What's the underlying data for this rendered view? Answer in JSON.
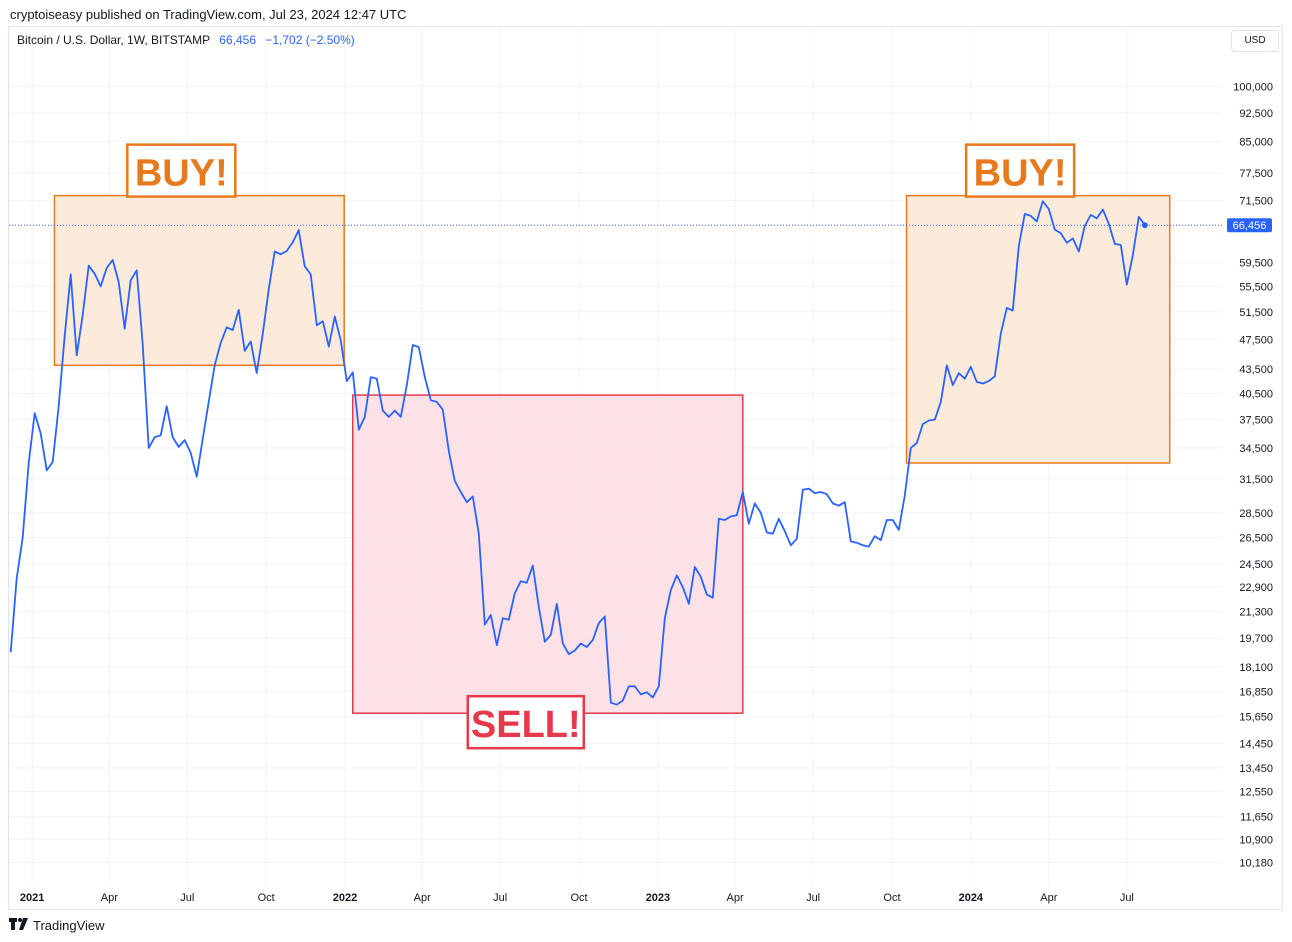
{
  "header": {
    "published": "cryptoiseasy published on TradingView.com, Jul 23, 2024 12:47 UTC"
  },
  "legend": {
    "symbol": "Bitcoin / U.S. Dollar, 1W, BITSTAMP",
    "price": "66,456",
    "change": "−1,702 (−2.50%)"
  },
  "currency_button": "USD",
  "footer": {
    "brand": "TradingView"
  },
  "colors": {
    "line": "#2962ff",
    "buy_fill": "#fce7d3",
    "buy_stroke": "#e87a1e",
    "buy_text": "#e87a1e",
    "sell_fill": "#fbdde3",
    "sell_stroke": "#e53a4b",
    "sell_text": "#e53a4b",
    "grid": "#f0f3fa",
    "price_tag": "#2962ff"
  },
  "chart_data": {
    "type": "line",
    "title": "Bitcoin / U.S. Dollar, 1W, BITSTAMP",
    "y_scale": "log",
    "ylim": [
      9500,
      110000
    ],
    "xlim": [
      "2020-12-05",
      "2024-10-20"
    ],
    "y_ticks": [
      100000,
      92500,
      85000,
      77500,
      71500,
      59500,
      55500,
      51500,
      47500,
      43500,
      40500,
      37500,
      34500,
      31500,
      28500,
      26500,
      24500,
      22900,
      21300,
      19700,
      18100,
      16850,
      15650,
      14450,
      13450,
      12550,
      11650,
      10900,
      10180
    ],
    "y_tick_labels": [
      "100,000",
      "92,500",
      "85,000",
      "77,500",
      "71,500",
      "59,500",
      "55,500",
      "51,500",
      "47,500",
      "43,500",
      "40,500",
      "37,500",
      "34,500",
      "31,500",
      "28,500",
      "26,500",
      "24,500",
      "22,900",
      "21,300",
      "19,700",
      "18,100",
      "16,850",
      "15,650",
      "14,450",
      "13,450",
      "12,550",
      "11,650",
      "10,900",
      "10,180"
    ],
    "x_ticks": [
      {
        "date": "2021-01-01",
        "label": "2021",
        "bold": true
      },
      {
        "date": "2021-04-01",
        "label": "Apr",
        "bold": false
      },
      {
        "date": "2021-07-01",
        "label": "Jul",
        "bold": false
      },
      {
        "date": "2021-10-01",
        "label": "Oct",
        "bold": false
      },
      {
        "date": "2022-01-01",
        "label": "2022",
        "bold": true
      },
      {
        "date": "2022-04-01",
        "label": "Apr",
        "bold": false
      },
      {
        "date": "2022-07-01",
        "label": "Jul",
        "bold": false
      },
      {
        "date": "2022-10-01",
        "label": "Oct",
        "bold": false
      },
      {
        "date": "2023-01-01",
        "label": "2023",
        "bold": true
      },
      {
        "date": "2023-04-01",
        "label": "Apr",
        "bold": false
      },
      {
        "date": "2023-07-01",
        "label": "Jul",
        "bold": false
      },
      {
        "date": "2023-10-01",
        "label": "Oct",
        "bold": false
      },
      {
        "date": "2024-01-01",
        "label": "2024",
        "bold": true
      },
      {
        "date": "2024-04-01",
        "label": "Apr",
        "bold": false
      },
      {
        "date": "2024-07-01",
        "label": "Jul",
        "bold": false
      }
    ],
    "current_price": 66456,
    "current_price_label": "66,456",
    "series": [
      {
        "points": [
          [
            "2020-12-07",
            18900
          ],
          [
            "2020-12-14",
            23500
          ],
          [
            "2020-12-21",
            26500
          ],
          [
            "2020-12-28",
            33000
          ],
          [
            "2021-01-04",
            38200
          ],
          [
            "2021-01-11",
            36000
          ],
          [
            "2021-01-18",
            32300
          ],
          [
            "2021-01-25",
            33100
          ],
          [
            "2021-02-01",
            39000
          ],
          [
            "2021-02-08",
            48000
          ],
          [
            "2021-02-15",
            57500
          ],
          [
            "2021-02-22",
            45300
          ],
          [
            "2021-03-01",
            51000
          ],
          [
            "2021-03-08",
            59000
          ],
          [
            "2021-03-15",
            57600
          ],
          [
            "2021-03-22",
            55500
          ],
          [
            "2021-03-29",
            58600
          ],
          [
            "2021-04-05",
            60000
          ],
          [
            "2021-04-12",
            56200
          ],
          [
            "2021-04-19",
            49000
          ],
          [
            "2021-04-26",
            56500
          ],
          [
            "2021-05-03",
            58200
          ],
          [
            "2021-05-10",
            46800
          ],
          [
            "2021-05-17",
            34500
          ],
          [
            "2021-05-24",
            35600
          ],
          [
            "2021-05-31",
            35800
          ],
          [
            "2021-06-07",
            39000
          ],
          [
            "2021-06-14",
            35600
          ],
          [
            "2021-06-21",
            34600
          ],
          [
            "2021-06-28",
            35300
          ],
          [
            "2021-07-05",
            34000
          ],
          [
            "2021-07-12",
            31700
          ],
          [
            "2021-07-19",
            35400
          ],
          [
            "2021-07-26",
            39500
          ],
          [
            "2021-08-02",
            44000
          ],
          [
            "2021-08-09",
            47000
          ],
          [
            "2021-08-16",
            49200
          ],
          [
            "2021-08-23",
            48800
          ],
          [
            "2021-08-30",
            51800
          ],
          [
            "2021-09-06",
            45900
          ],
          [
            "2021-09-13",
            47200
          ],
          [
            "2021-09-20",
            43000
          ],
          [
            "2021-09-27",
            48200
          ],
          [
            "2021-10-04",
            55000
          ],
          [
            "2021-10-11",
            61500
          ],
          [
            "2021-10-18",
            61000
          ],
          [
            "2021-10-25",
            61600
          ],
          [
            "2021-11-01",
            63200
          ],
          [
            "2021-11-08",
            65500
          ],
          [
            "2021-11-15",
            58900
          ],
          [
            "2021-11-22",
            57500
          ],
          [
            "2021-11-29",
            49500
          ],
          [
            "2021-12-06",
            50100
          ],
          [
            "2021-12-13",
            46500
          ],
          [
            "2021-12-20",
            50800
          ],
          [
            "2021-12-27",
            47300
          ],
          [
            "2022-01-03",
            42000
          ],
          [
            "2022-01-10",
            43100
          ],
          [
            "2022-01-17",
            36400
          ],
          [
            "2022-01-24",
            37800
          ],
          [
            "2022-01-31",
            42500
          ],
          [
            "2022-02-07",
            42300
          ],
          [
            "2022-02-14",
            38500
          ],
          [
            "2022-02-21",
            37800
          ],
          [
            "2022-02-28",
            38500
          ],
          [
            "2022-03-07",
            37800
          ],
          [
            "2022-03-14",
            41500
          ],
          [
            "2022-03-21",
            46700
          ],
          [
            "2022-03-28",
            46400
          ],
          [
            "2022-04-04",
            42500
          ],
          [
            "2022-04-11",
            39700
          ],
          [
            "2022-04-18",
            39500
          ],
          [
            "2022-04-25",
            38600
          ],
          [
            "2022-05-02",
            34200
          ],
          [
            "2022-05-09",
            31300
          ],
          [
            "2022-05-16",
            30300
          ],
          [
            "2022-05-23",
            29400
          ],
          [
            "2022-05-30",
            29900
          ],
          [
            "2022-06-06",
            26800
          ],
          [
            "2022-06-13",
            20500
          ],
          [
            "2022-06-20",
            21100
          ],
          [
            "2022-06-27",
            19300
          ],
          [
            "2022-07-04",
            20900
          ],
          [
            "2022-07-11",
            20800
          ],
          [
            "2022-07-18",
            22500
          ],
          [
            "2022-07-25",
            23300
          ],
          [
            "2022-08-01",
            23200
          ],
          [
            "2022-08-08",
            24400
          ],
          [
            "2022-08-15",
            21600
          ],
          [
            "2022-08-22",
            19500
          ],
          [
            "2022-08-29",
            19900
          ],
          [
            "2022-09-05",
            21800
          ],
          [
            "2022-09-12",
            19400
          ],
          [
            "2022-09-19",
            18800
          ],
          [
            "2022-09-26",
            19000
          ],
          [
            "2022-10-03",
            19400
          ],
          [
            "2022-10-10",
            19200
          ],
          [
            "2022-10-17",
            19600
          ],
          [
            "2022-10-24",
            20600
          ],
          [
            "2022-10-31",
            21000
          ],
          [
            "2022-11-07",
            16300
          ],
          [
            "2022-11-14",
            16200
          ],
          [
            "2022-11-21",
            16400
          ],
          [
            "2022-11-28",
            17100
          ],
          [
            "2022-12-05",
            17100
          ],
          [
            "2022-12-12",
            16700
          ],
          [
            "2022-12-19",
            16800
          ],
          [
            "2022-12-26",
            16550
          ],
          [
            "2023-01-02",
            17100
          ],
          [
            "2023-01-09",
            20900
          ],
          [
            "2023-01-16",
            22700
          ],
          [
            "2023-01-23",
            23700
          ],
          [
            "2023-01-30",
            22900
          ],
          [
            "2023-02-06",
            21800
          ],
          [
            "2023-02-13",
            24300
          ],
          [
            "2023-02-20",
            23600
          ],
          [
            "2023-02-27",
            22400
          ],
          [
            "2023-03-06",
            22200
          ],
          [
            "2023-03-13",
            28000
          ],
          [
            "2023-03-20",
            27900
          ],
          [
            "2023-03-27",
            28200
          ],
          [
            "2023-04-03",
            28300
          ],
          [
            "2023-04-10",
            30300
          ],
          [
            "2023-04-17",
            27600
          ],
          [
            "2023-04-24",
            29300
          ],
          [
            "2023-05-01",
            28500
          ],
          [
            "2023-05-08",
            26900
          ],
          [
            "2023-05-15",
            26800
          ],
          [
            "2023-05-22",
            28000
          ],
          [
            "2023-05-29",
            27000
          ],
          [
            "2023-06-05",
            25900
          ],
          [
            "2023-06-12",
            26400
          ],
          [
            "2023-06-19",
            30500
          ],
          [
            "2023-06-26",
            30600
          ],
          [
            "2023-07-03",
            30200
          ],
          [
            "2023-07-10",
            30300
          ],
          [
            "2023-07-17",
            30100
          ],
          [
            "2023-07-24",
            29300
          ],
          [
            "2023-07-31",
            29100
          ],
          [
            "2023-08-07",
            29400
          ],
          [
            "2023-08-14",
            26200
          ],
          [
            "2023-08-21",
            26100
          ],
          [
            "2023-08-28",
            25900
          ],
          [
            "2023-09-04",
            25800
          ],
          [
            "2023-09-11",
            26600
          ],
          [
            "2023-09-18",
            26300
          ],
          [
            "2023-09-25",
            27900
          ],
          [
            "2023-10-02",
            27900
          ],
          [
            "2023-10-09",
            27100
          ],
          [
            "2023-10-16",
            30000
          ],
          [
            "2023-10-23",
            34500
          ],
          [
            "2023-10-30",
            35000
          ],
          [
            "2023-11-06",
            37000
          ],
          [
            "2023-11-13",
            37400
          ],
          [
            "2023-11-20",
            37500
          ],
          [
            "2023-11-27",
            39500
          ],
          [
            "2023-12-04",
            44000
          ],
          [
            "2023-12-11",
            41500
          ],
          [
            "2023-12-18",
            43000
          ],
          [
            "2023-12-25",
            42300
          ],
          [
            "2024-01-01",
            43800
          ],
          [
            "2024-01-08",
            41900
          ],
          [
            "2024-01-15",
            41700
          ],
          [
            "2024-01-22",
            42000
          ],
          [
            "2024-01-29",
            42600
          ],
          [
            "2024-02-05",
            48300
          ],
          [
            "2024-02-12",
            52100
          ],
          [
            "2024-02-19",
            51700
          ],
          [
            "2024-02-26",
            62500
          ],
          [
            "2024-03-04",
            68700
          ],
          [
            "2024-03-11",
            68300
          ],
          [
            "2024-03-18",
            67200
          ],
          [
            "2024-03-25",
            71300
          ],
          [
            "2024-04-01",
            69700
          ],
          [
            "2024-04-08",
            65600
          ],
          [
            "2024-04-15",
            64900
          ],
          [
            "2024-04-22",
            63100
          ],
          [
            "2024-04-29",
            63900
          ],
          [
            "2024-05-06",
            61500
          ],
          [
            "2024-05-13",
            66300
          ],
          [
            "2024-05-20",
            68500
          ],
          [
            "2024-05-27",
            67800
          ],
          [
            "2024-06-03",
            69600
          ],
          [
            "2024-06-10",
            66700
          ],
          [
            "2024-06-17",
            62900
          ],
          [
            "2024-06-24",
            62700
          ],
          [
            "2024-07-01",
            55800
          ],
          [
            "2024-07-08",
            60800
          ],
          [
            "2024-07-15",
            68100
          ],
          [
            "2024-07-22",
            66456
          ]
        ]
      }
    ],
    "annotations": [
      {
        "type": "rect",
        "kind": "buy",
        "from": "2021-01-27",
        "to": "2021-12-31",
        "low": 44000,
        "high": 72500,
        "label": "BUY!"
      },
      {
        "type": "rect",
        "kind": "sell",
        "from": "2022-01-10",
        "to": "2023-04-10",
        "low": 15800,
        "high": 40300,
        "label": "SELL!"
      },
      {
        "type": "rect",
        "kind": "buy",
        "from": "2023-10-18",
        "to": "2024-08-20",
        "low": 33000,
        "high": 72500,
        "label": "BUY!"
      }
    ]
  }
}
